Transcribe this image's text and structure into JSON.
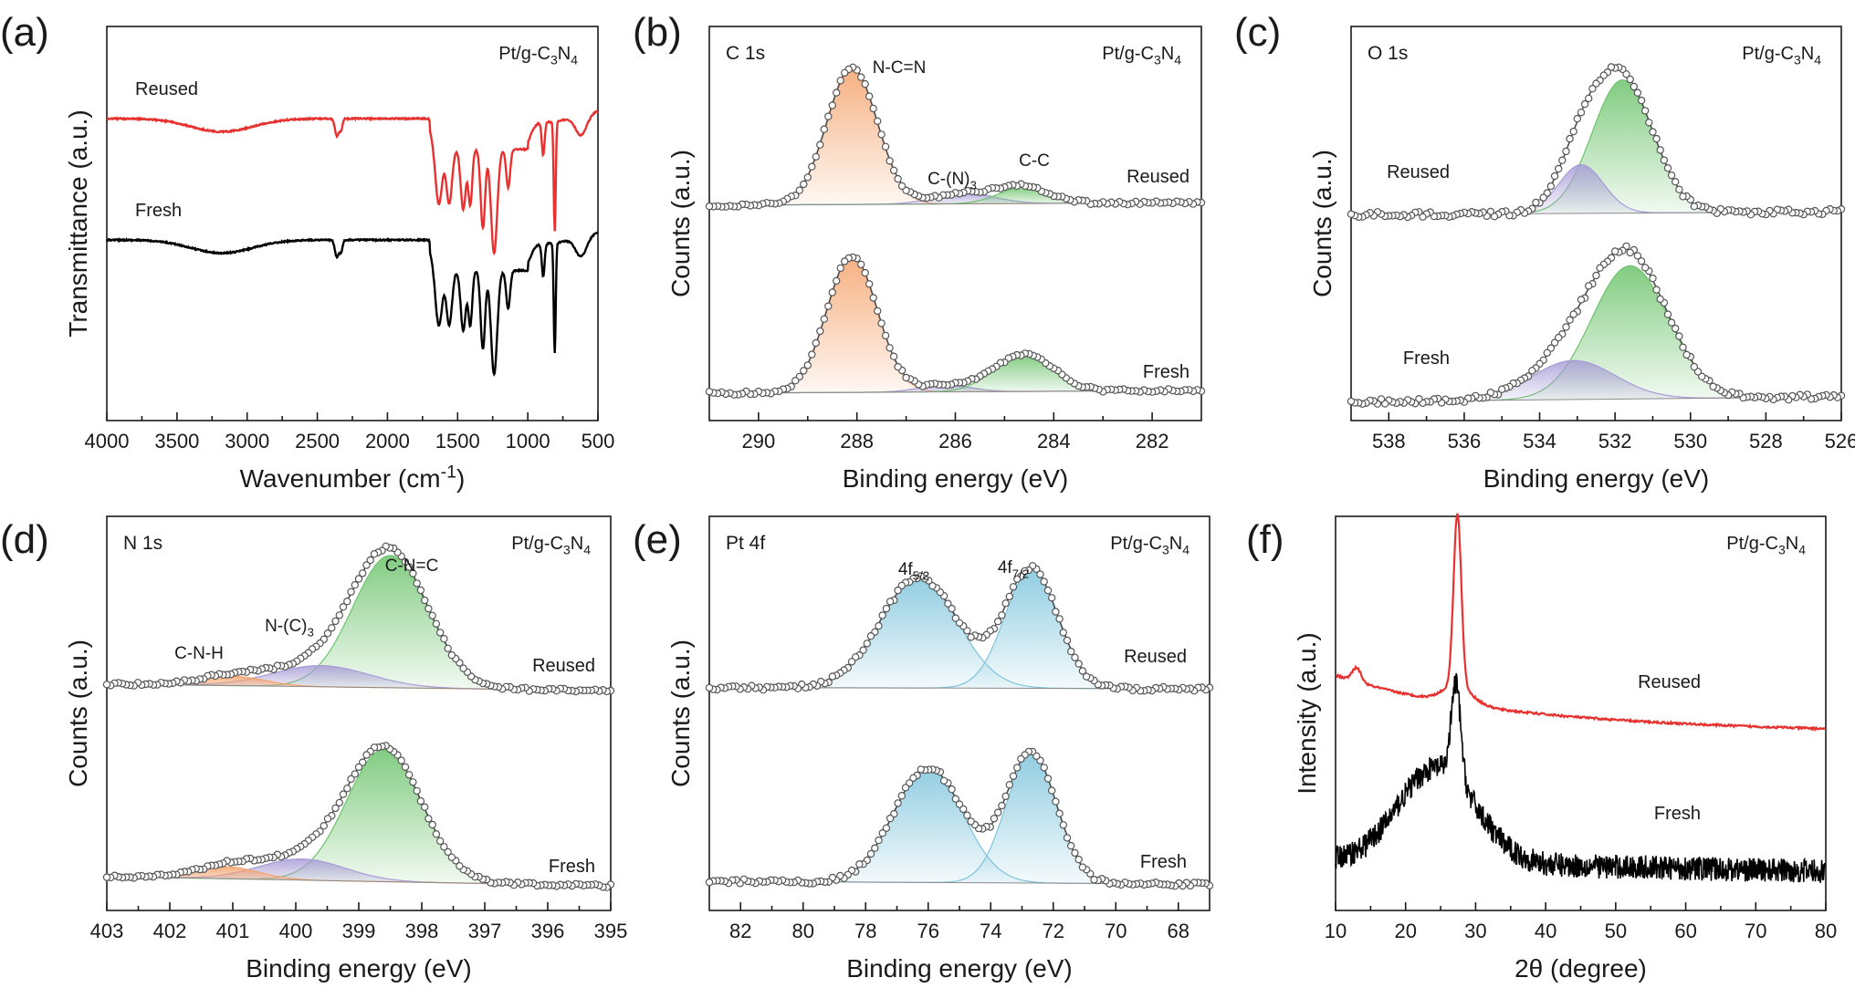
{
  "figure": {
    "panels": [
      {
        "letter": "(a)",
        "title": "",
        "sample": "Pt/g-C3N4",
        "xlabel": "Wavenumber (cm-1)",
        "ylabel": "Transmittance (a.u.)",
        "xlim": [
          4000,
          500
        ],
        "xticks": [
          4000,
          3500,
          3000,
          2500,
          2000,
          1500,
          1000,
          500
        ],
        "offset": 0.72,
        "series": [
          {
            "name": "Fresh",
            "color": "#000000"
          },
          {
            "name": "Reused",
            "color": "#e8312f"
          }
        ]
      },
      {
        "letter": "(b)",
        "title": "C 1s",
        "sample": "Pt/g-C3N4",
        "xlabel": "Binding energy (eV)",
        "ylabel": "Counts (a.u.)",
        "xlim": [
          291,
          281
        ],
        "xticks": [
          290,
          288,
          286,
          284,
          282
        ],
        "offset": 1.25,
        "series": [
          {
            "name": "Fresh",
            "components": [
              {
                "center": 288.1,
                "fwhm": 1.2,
                "amplitude": 1.0,
                "color": "#f5a26a"
              },
              {
                "center": 286.2,
                "fwhm": 1.2,
                "amplitude": 0.05,
                "color": "#a79bd6"
              },
              {
                "center": 284.6,
                "fwhm": 1.4,
                "amplitude": 0.27,
                "color": "#6cc36b"
              }
            ]
          },
          {
            "name": "Reused",
            "components": [
              {
                "center": 288.1,
                "fwhm": 1.2,
                "amplitude": 1.0,
                "color": "#f5a26a"
              },
              {
                "center": 285.8,
                "fwhm": 1.4,
                "amplitude": 0.08,
                "color": "#a79bd6"
              },
              {
                "center": 284.6,
                "fwhm": 1.2,
                "amplitude": 0.12,
                "color": "#6cc36b"
              }
            ]
          }
        ],
        "annotations": [
          "N-C=N",
          "C-(N)3",
          "C-C"
        ]
      },
      {
        "letter": "(c)",
        "title": "O 1s",
        "sample": "Pt/g-C3N4",
        "xlabel": "Binding energy (eV)",
        "ylabel": "Counts (a.u.)",
        "xlim": [
          539,
          526
        ],
        "xticks": [
          538,
          536,
          534,
          532,
          530,
          528,
          526
        ],
        "offset": 1.05,
        "series": [
          {
            "name": "Fresh",
            "components": [
              {
                "center": 531.6,
                "fwhm": 2.4,
                "amplitude": 0.82,
                "color": "#6cc36b"
              },
              {
                "center": 533.1,
                "fwhm": 2.6,
                "amplitude": 0.24,
                "color": "#a79bd6"
              }
            ]
          },
          {
            "name": "Reused",
            "components": [
              {
                "center": 531.8,
                "fwhm": 1.9,
                "amplitude": 0.82,
                "color": "#6cc36b"
              },
              {
                "center": 532.9,
                "fwhm": 1.4,
                "amplitude": 0.3,
                "color": "#a79bd6"
              }
            ]
          }
        ]
      },
      {
        "letter": "(d)",
        "title": "N 1s",
        "sample": "Pt/g-C3N4",
        "xlabel": "Binding energy (eV)",
        "ylabel": "Counts (a.u.)",
        "xlim": [
          403,
          395
        ],
        "xticks": [
          403,
          402,
          401,
          400,
          399,
          398,
          397,
          396,
          395
        ],
        "offset": 1.15,
        "series": [
          {
            "name": "Fresh",
            "components": [
              {
                "center": 398.6,
                "fwhm": 1.4,
                "amplitude": 1.0,
                "color": "#6cc36b"
              },
              {
                "center": 399.9,
                "fwhm": 1.6,
                "amplitude": 0.16,
                "color": "#a79bd6"
              },
              {
                "center": 401.1,
                "fwhm": 1.2,
                "amplitude": 0.09,
                "color": "#f5a26a"
              }
            ]
          },
          {
            "name": "Reused",
            "components": [
              {
                "center": 398.5,
                "fwhm": 1.4,
                "amplitude": 1.0,
                "color": "#6cc36b"
              },
              {
                "center": 399.6,
                "fwhm": 1.8,
                "amplitude": 0.16,
                "color": "#a79bd6"
              },
              {
                "center": 401.0,
                "fwhm": 1.2,
                "amplitude": 0.07,
                "color": "#f5a26a"
              }
            ]
          }
        ],
        "annotations": [
          "C-N-H",
          "N-(C)3",
          "C-N=C"
        ]
      },
      {
        "letter": "(e)",
        "title": "Pt 4f",
        "sample": "Pt/g-C3N4",
        "xlabel": "Binding energy (eV)",
        "ylabel": "Counts (a.u.)",
        "xlim": [
          83,
          67
        ],
        "xticks": [
          82,
          80,
          78,
          76,
          74,
          72,
          70,
          68
        ],
        "offset": 1.15,
        "series": [
          {
            "name": "Fresh",
            "components": [
              {
                "center": 76.0,
                "fwhm": 2.6,
                "amplitude": 0.85,
                "color": "#7dc4dc"
              },
              {
                "center": 72.7,
                "fwhm": 1.9,
                "amplitude": 0.96,
                "color": "#7dc4dc"
              }
            ]
          },
          {
            "name": "Reused",
            "components": [
              {
                "center": 76.3,
                "fwhm": 2.9,
                "amplitude": 0.82,
                "color": "#7dc4dc"
              },
              {
                "center": 72.7,
                "fwhm": 2.0,
                "amplitude": 0.88,
                "color": "#7dc4dc"
              }
            ]
          }
        ],
        "annotations": [
          "4f5/2",
          "4f7/2"
        ]
      },
      {
        "letter": "(f)",
        "title": "",
        "sample": "Pt/g-C3N4",
        "xlabel": "2θ (degree)",
        "ylabel": "Intensity (a.u.)",
        "xlim": [
          10,
          80
        ],
        "xticks": [
          10,
          20,
          30,
          40,
          50,
          60,
          70,
          80
        ],
        "series": [
          {
            "name": "Fresh",
            "color": "#000000",
            "peak_2theta": 27.4
          },
          {
            "name": "Reused",
            "color": "#e8312f",
            "peak_2theta": 27.4
          }
        ]
      }
    ]
  }
}
